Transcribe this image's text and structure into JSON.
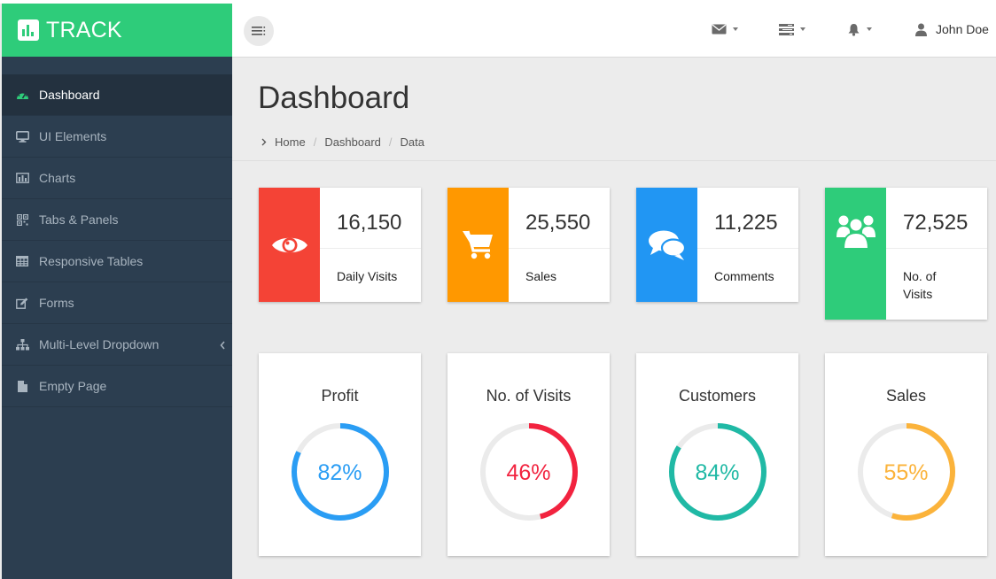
{
  "brand": {
    "name": "TRACK"
  },
  "topbar": {
    "user_name": "John Doe"
  },
  "sidebar": {
    "items": [
      {
        "label": "Dashboard",
        "icon": "dashboard-icon"
      },
      {
        "label": "UI Elements",
        "icon": "desktop-icon"
      },
      {
        "label": "Charts",
        "icon": "bar-chart-icon"
      },
      {
        "label": "Tabs & Panels",
        "icon": "qrcode-icon"
      },
      {
        "label": "Responsive Tables",
        "icon": "table-icon"
      },
      {
        "label": "Forms",
        "icon": "edit-icon"
      },
      {
        "label": "Multi-Level Dropdown",
        "icon": "sitemap-icon"
      },
      {
        "label": "Empty Page",
        "icon": "file-icon"
      }
    ]
  },
  "page": {
    "title": "Dashboard",
    "breadcrumb": [
      "Home",
      "Dashboard",
      "Data"
    ]
  },
  "stats": [
    {
      "value": "16,150",
      "label": "Daily Visits",
      "color": "#f44336",
      "icon": "eye-icon"
    },
    {
      "value": "25,550",
      "label": "Sales",
      "color": "#ff9800",
      "icon": "shopping-cart-icon"
    },
    {
      "value": "11,225",
      "label": "Comments",
      "color": "#2196f3",
      "icon": "comments-icon"
    },
    {
      "value": "72,525",
      "label": "No. of Visits",
      "color": "#2ecc7a",
      "icon": "users-icon"
    }
  ],
  "donuts": [
    {
      "title": "Profit",
      "percent_label": "82%",
      "percent": 82,
      "color": "#2a9df4"
    },
    {
      "title": "No. of Visits",
      "percent_label": "46%",
      "percent": 46,
      "color": "#f2233f"
    },
    {
      "title": "Customers",
      "percent_label": "84%",
      "percent": 84,
      "color": "#20b9a5"
    },
    {
      "title": "Sales",
      "percent_label": "55%",
      "percent": 55,
      "color": "#fbb33b"
    }
  ],
  "colors": {
    "brand": "#2ecc7a",
    "sidebar": "#2c3e50",
    "track": "#ebebeb"
  }
}
